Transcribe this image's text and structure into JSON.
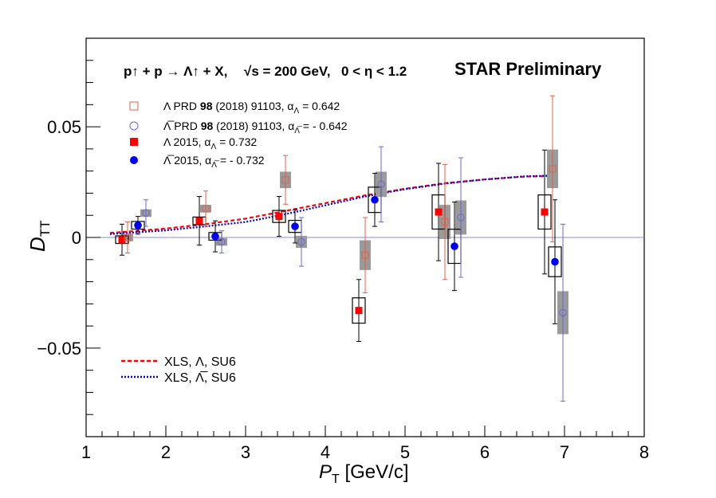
{
  "chart_data": {
    "type": "scatter",
    "title": "",
    "xlabel": {
      "main": "P",
      "sub": "T",
      "unit": " [GeV/c]"
    },
    "ylabel": {
      "main": "D",
      "sub": "TT"
    },
    "xlim": [
      1,
      8
    ],
    "ylim": [
      -0.09,
      0.09
    ],
    "x_ticks": [
      "1",
      "2",
      "3",
      "4",
      "5",
      "6",
      "7",
      "8"
    ],
    "y_ticks": [
      {
        "v": 0.05,
        "label": "0.05"
      },
      {
        "v": 0.0,
        "label": "0"
      },
      {
        "v": -0.05,
        "label": "−0.05"
      }
    ],
    "reaction": {
      "lhs": "p↑ + p → Λ↑ + X,",
      "energy": "√s = 200 GeV,",
      "eta": "0 < η < 1.2"
    },
    "star_label": "STAR Preliminary",
    "legend_points": [
      {
        "sym": "Λ",
        "text1": "PRD ",
        "bold": "98",
        "text2": " (2018) 91103,",
        "alpha_text": "α",
        "alpha_sub": "Λ",
        "value": "0.642"
      },
      {
        "sym": "Λ̅",
        "text1": "PRD ",
        "bold": "98",
        "text2": " (2018) 91103,",
        "alpha_text": "α",
        "alpha_sub": "Λ̅",
        "value": "- 0.642"
      },
      {
        "sym": "Λ",
        "text1": "2015,",
        "bold": "",
        "text2": "",
        "alpha_text": "α",
        "alpha_sub": "Λ",
        "value": "0.732"
      },
      {
        "sym": "Λ̅",
        "text1": "2015,",
        "bold": "",
        "text2": "",
        "alpha_text": "α",
        "alpha_sub": "Λ̅",
        "value": "- 0.732"
      }
    ],
    "legend_lines": [
      {
        "text": "XLS, Λ, SU6",
        "color": "#ff0000"
      },
      {
        "text": "XLS, Λ̅, SU6",
        "color": "#0000e0"
      }
    ],
    "colors": {
      "lambda": "#ff0000",
      "antilambda": "#0000ee",
      "prd_lambda": "#e0624a",
      "prd_antilambda": "#6a6ad0",
      "sys_box_gray": "#9a9a9a",
      "zero_line": "#8a8ad8"
    },
    "series": [
      {
        "name": "Λ 2015",
        "points": [
          {
            "x": 1.45,
            "y": -0.001,
            "stat": 0.007,
            "sys": 0.001
          },
          {
            "x": 2.42,
            "y": 0.0075,
            "stat": 0.011,
            "sys": 0.001
          },
          {
            "x": 3.42,
            "y": 0.0095,
            "stat": 0.009,
            "sys": 0.002
          },
          {
            "x": 4.42,
            "y": -0.033,
            "stat": 0.014,
            "sys": 0.005
          },
          {
            "x": 5.42,
            "y": 0.0115,
            "stat": 0.022,
            "sys": 0.007
          },
          {
            "x": 6.75,
            "y": 0.0115,
            "stat": 0.028,
            "sys": 0.007
          }
        ]
      },
      {
        "name": "Λ̅ 2015",
        "points": [
          {
            "x": 1.65,
            "y": 0.0055,
            "stat": 0.004,
            "sys": 0.001
          },
          {
            "x": 2.62,
            "y": 0.0005,
            "stat": 0.007,
            "sys": 0.001
          },
          {
            "x": 3.62,
            "y": 0.005,
            "stat": 0.0075,
            "sys": 0.002
          },
          {
            "x": 4.62,
            "y": 0.017,
            "stat": 0.012,
            "sys": 0.005
          },
          {
            "x": 5.62,
            "y": -0.004,
            "stat": 0.02,
            "sys": 0.007
          },
          {
            "x": 6.88,
            "y": -0.011,
            "stat": 0.028,
            "sys": 0.006
          }
        ]
      },
      {
        "name": "Λ PRD 98 (2018) 91103",
        "points": [
          {
            "x": 1.52,
            "y": 0.0,
            "stat": 0.007,
            "sys": 0.001
          },
          {
            "x": 2.5,
            "y": 0.013,
            "stat": 0.008,
            "sys": 0.001
          },
          {
            "x": 3.5,
            "y": 0.026,
            "stat": 0.011,
            "sys": 0.003
          },
          {
            "x": 4.5,
            "y": -0.008,
            "stat": 0.017,
            "sys": 0.006
          },
          {
            "x": 5.5,
            "y": 0.007,
            "stat": 0.026,
            "sys": 0.007
          },
          {
            "x": 6.85,
            "y": 0.031,
            "stat": 0.033,
            "sys": 0.008
          }
        ]
      },
      {
        "name": "Λ̅ PRD 98 (2018) 91103",
        "points": [
          {
            "x": 1.75,
            "y": 0.011,
            "stat": 0.006,
            "sys": 0.001
          },
          {
            "x": 2.7,
            "y": -0.002,
            "stat": 0.005,
            "sys": 0.001
          },
          {
            "x": 3.7,
            "y": -0.002,
            "stat": 0.011,
            "sys": 0.002
          },
          {
            "x": 4.7,
            "y": 0.024,
            "stat": 0.017,
            "sys": 0.005
          },
          {
            "x": 5.7,
            "y": 0.009,
            "stat": 0.027,
            "sys": 0.007
          },
          {
            "x": 6.98,
            "y": -0.034,
            "stat": 0.04,
            "sys": 0.009
          }
        ]
      },
      {
        "name": "XLS, Λ, SU6",
        "curve": [
          [
            1.3,
            0.002
          ],
          [
            2.0,
            0.004
          ],
          [
            2.5,
            0.006
          ],
          [
            3.0,
            0.0085
          ],
          [
            3.5,
            0.012
          ],
          [
            4.0,
            0.0155
          ],
          [
            4.5,
            0.019
          ],
          [
            5.0,
            0.022
          ],
          [
            5.5,
            0.0245
          ],
          [
            6.0,
            0.0262
          ],
          [
            6.5,
            0.0275
          ],
          [
            6.9,
            0.0278
          ]
        ]
      },
      {
        "name": "XLS, Λ̅, SU6",
        "curve": [
          [
            1.3,
            0.0015
          ],
          [
            2.0,
            0.0032
          ],
          [
            2.5,
            0.005
          ],
          [
            3.0,
            0.007
          ],
          [
            3.5,
            0.0105
          ],
          [
            4.0,
            0.0145
          ],
          [
            4.5,
            0.0185
          ],
          [
            5.0,
            0.0218
          ],
          [
            5.5,
            0.0243
          ],
          [
            6.0,
            0.0262
          ],
          [
            6.5,
            0.0276
          ],
          [
            6.9,
            0.028
          ]
        ]
      }
    ]
  }
}
